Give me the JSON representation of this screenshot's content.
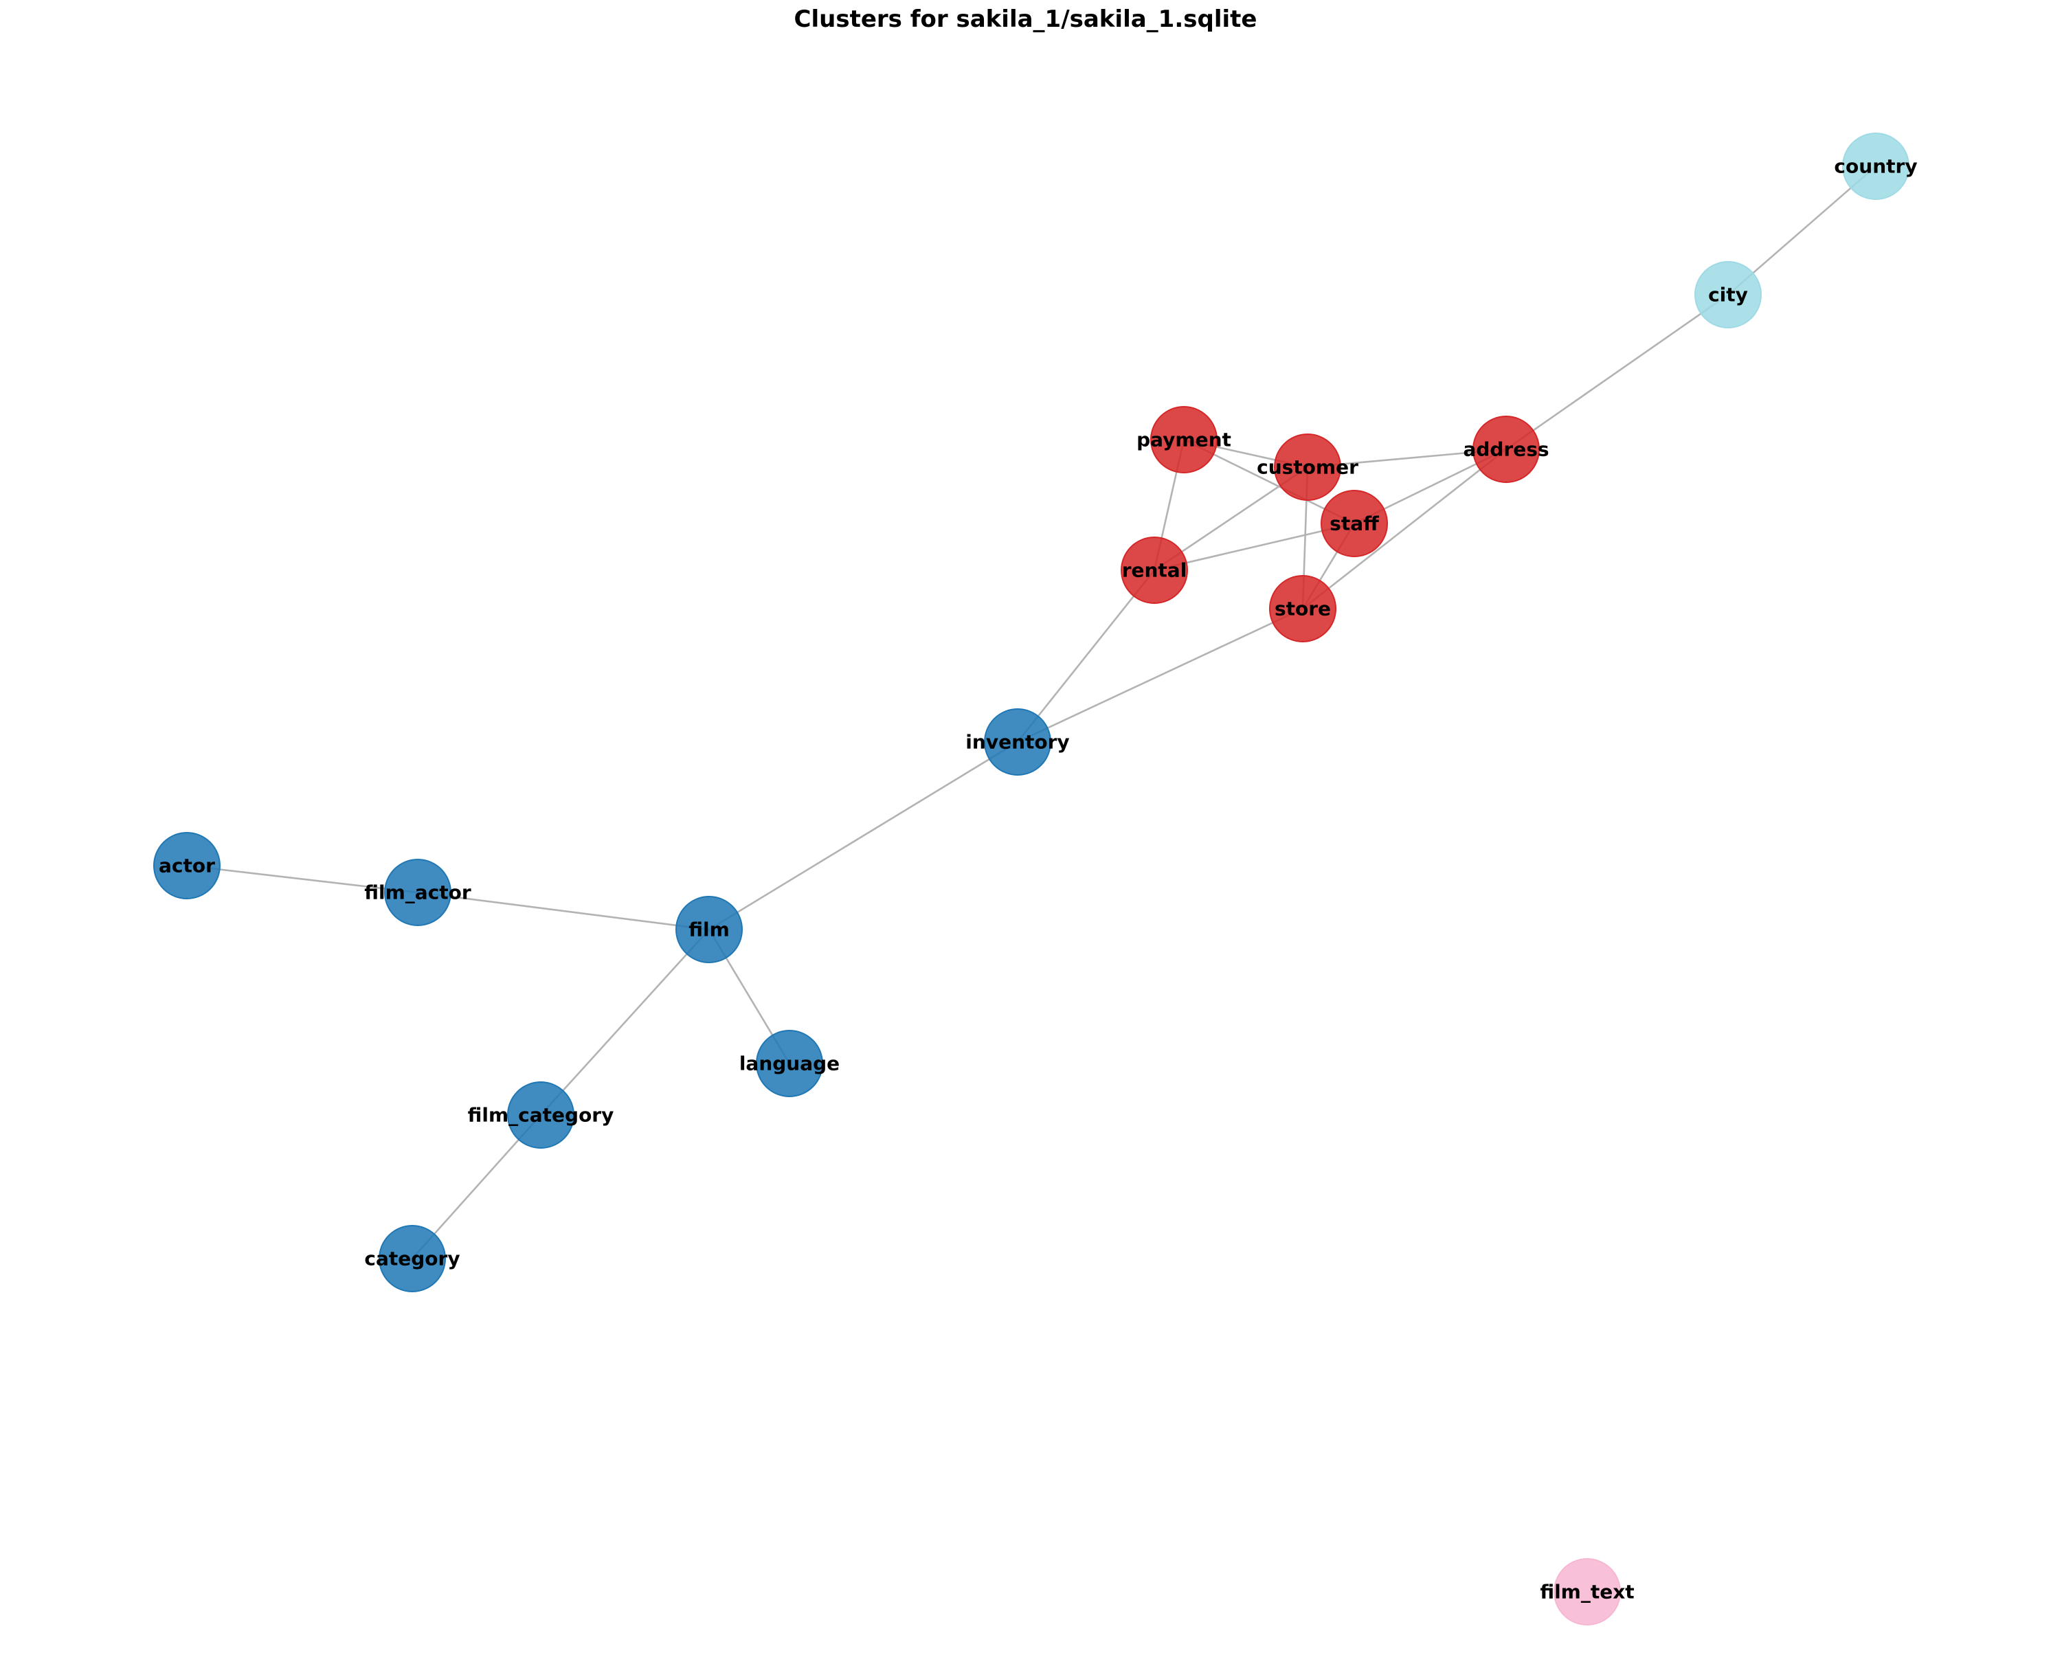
{
  "title": "Clusters for sakila_1/sakila_1.sqlite",
  "colors": {
    "red": "#d62728",
    "blue": "#1f77b4",
    "cyan": "#9edae5",
    "pink": "#f7b6d2",
    "edge": "#b3b3b3"
  },
  "nodes": [
    {
      "id": "country",
      "label": "country",
      "color": "cyan"
    },
    {
      "id": "city",
      "label": "city",
      "color": "cyan"
    },
    {
      "id": "payment",
      "label": "payment",
      "color": "red"
    },
    {
      "id": "customer",
      "label": "customer",
      "color": "red"
    },
    {
      "id": "address",
      "label": "address",
      "color": "red"
    },
    {
      "id": "staff",
      "label": "staff",
      "color": "red"
    },
    {
      "id": "rental",
      "label": "rental",
      "color": "red"
    },
    {
      "id": "store",
      "label": "store",
      "color": "red"
    },
    {
      "id": "inventory",
      "label": "inventory",
      "color": "blue"
    },
    {
      "id": "actor",
      "label": "actor",
      "color": "blue"
    },
    {
      "id": "film_actor",
      "label": "film_actor",
      "color": "blue"
    },
    {
      "id": "film",
      "label": "film",
      "color": "blue"
    },
    {
      "id": "language",
      "label": "language",
      "color": "blue"
    },
    {
      "id": "film_category",
      "label": "film_category",
      "color": "blue"
    },
    {
      "id": "category",
      "label": "category",
      "color": "blue"
    },
    {
      "id": "film_text",
      "label": "film_text",
      "color": "pink"
    }
  ],
  "edges": [
    [
      "country",
      "city"
    ],
    [
      "city",
      "address"
    ],
    [
      "address",
      "customer"
    ],
    [
      "address",
      "staff"
    ],
    [
      "address",
      "store"
    ],
    [
      "payment",
      "customer"
    ],
    [
      "payment",
      "staff"
    ],
    [
      "payment",
      "rental"
    ],
    [
      "customer",
      "rental"
    ],
    [
      "customer",
      "store"
    ],
    [
      "staff",
      "rental"
    ],
    [
      "staff",
      "store"
    ],
    [
      "rental",
      "inventory"
    ],
    [
      "store",
      "inventory"
    ],
    [
      "inventory",
      "film"
    ],
    [
      "actor",
      "film_actor"
    ],
    [
      "film_actor",
      "film"
    ],
    [
      "film",
      "language"
    ],
    [
      "film",
      "film_category"
    ],
    [
      "film_category",
      "category"
    ]
  ]
}
